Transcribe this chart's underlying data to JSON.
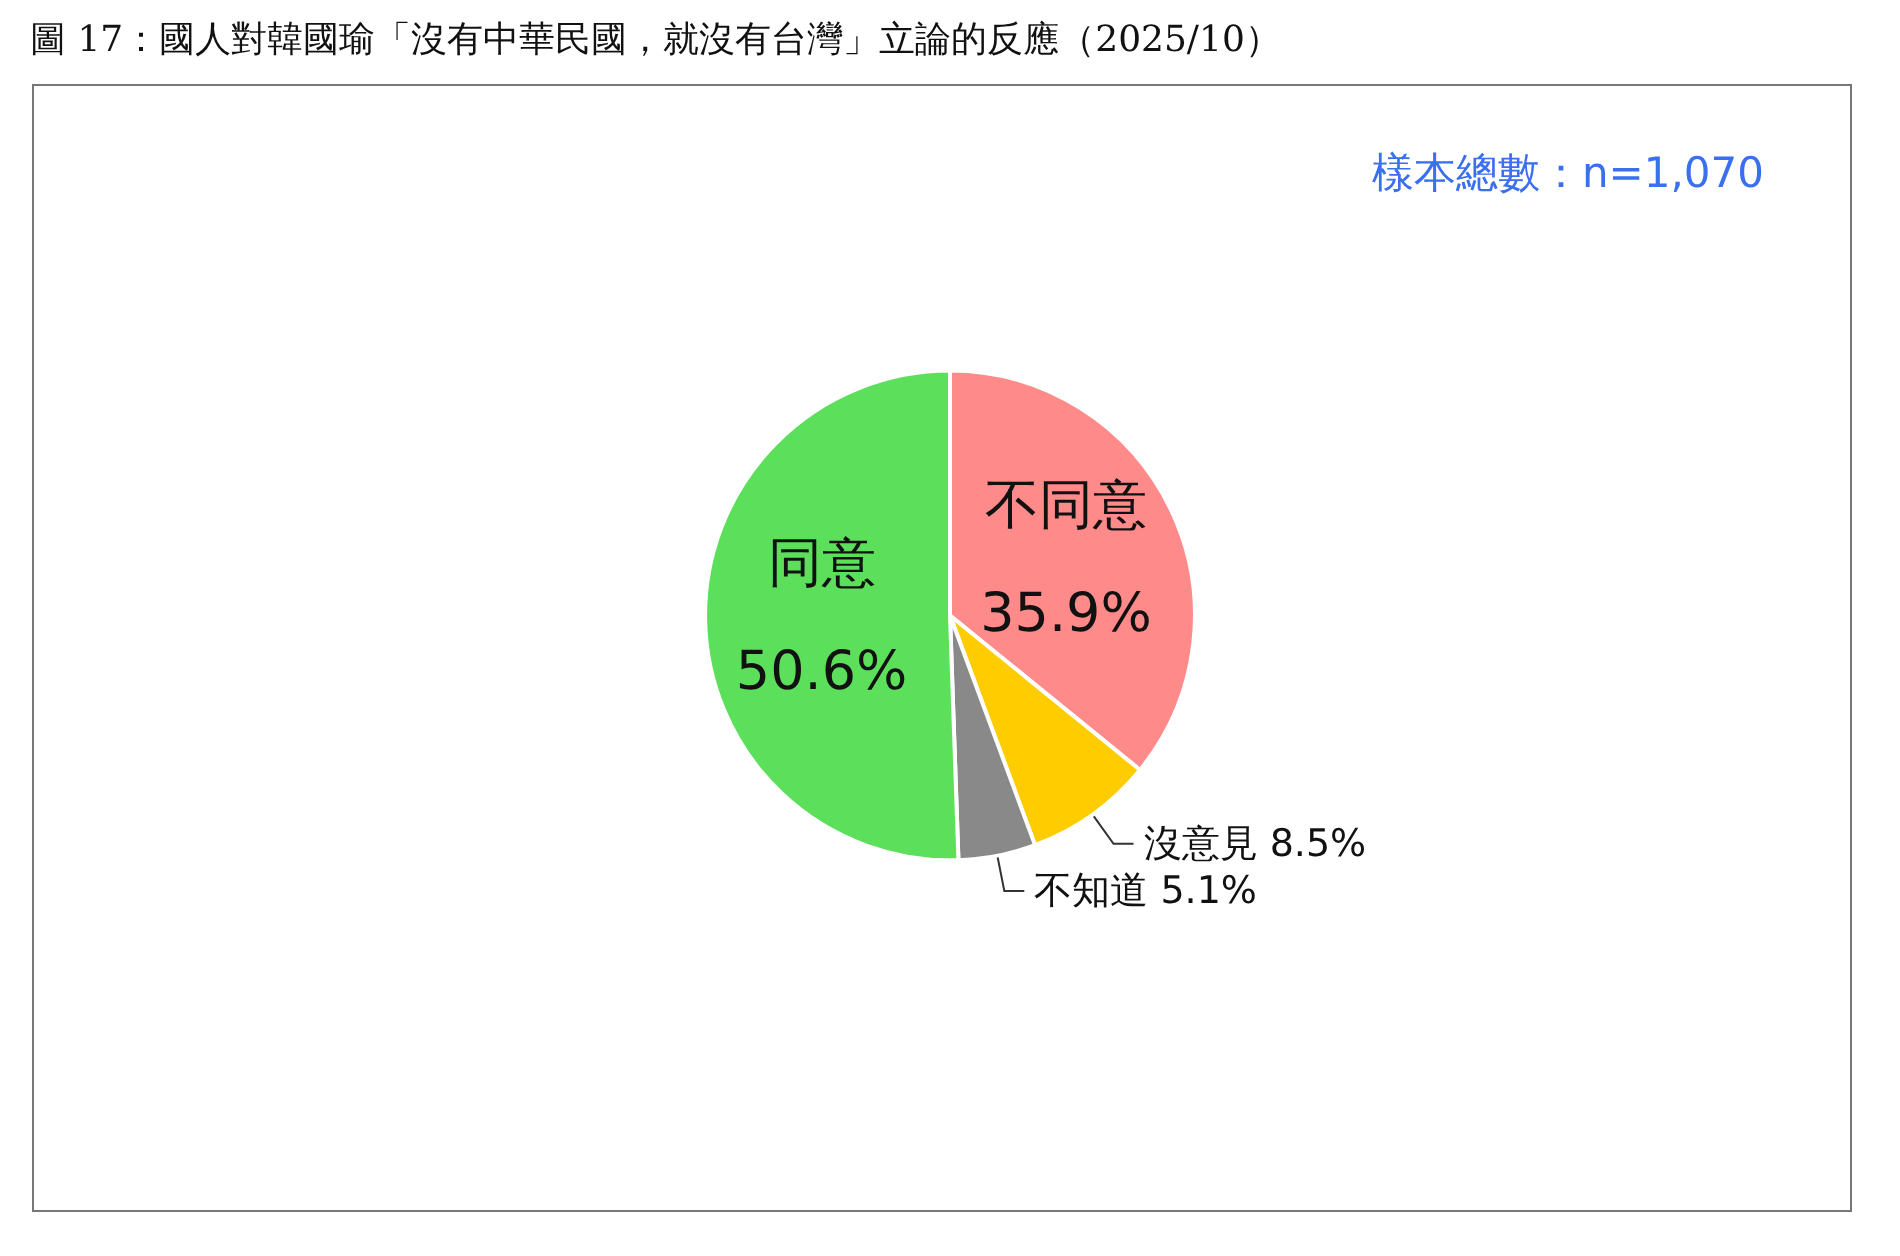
{
  "chart_data": {
    "type": "pie",
    "title": "圖 17：國人對韓國瑜「沒有中華民國，就沒有台灣」立論的反應（2025/10）",
    "annotations": [
      "樣本總數：n=1,070"
    ],
    "categories": [
      "不同意",
      "沒意見",
      "不知道",
      "同意"
    ],
    "values": [
      35.9,
      8.5,
      5.1,
      50.6
    ],
    "value_labels": [
      "35.9%",
      "8.5%",
      "5.1%",
      "50.6%"
    ],
    "colors": [
      "#ff8a8a",
      "#ffcc00",
      "#898989",
      "#5ce05c"
    ],
    "legend": false
  }
}
